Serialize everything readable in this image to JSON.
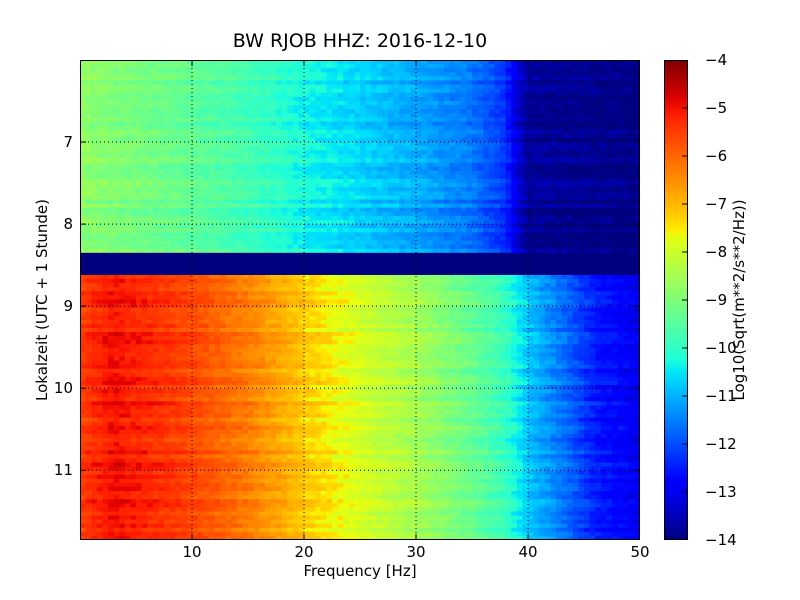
{
  "chart_data": {
    "type": "heatmap",
    "title": "BW RJOB HHZ: 2016-12-10",
    "xlabel": "Frequency [Hz]",
    "ylabel": "Lokalzeit (UTC + 1 Stunde)",
    "xlim": [
      0,
      50
    ],
    "ylim": [
      11.85,
      6.0
    ],
    "y_inverted": true,
    "x_ticks": [
      10,
      20,
      30,
      40,
      50
    ],
    "y_ticks": [
      7,
      8,
      9,
      10,
      11
    ],
    "grid": true,
    "colormap": "jet",
    "colorbar": {
      "label": "Log10(Sqrt(m**2/s**2/Hz))",
      "range": [
        -14,
        -4
      ],
      "ticks": [
        -4,
        -5,
        -6,
        -7,
        -8,
        -9,
        -10,
        -11,
        -12,
        -13,
        -14
      ]
    },
    "segments": [
      {
        "time_range": [
          6.0,
          8.35
        ],
        "frequency_hz": [
          0,
          5,
          10,
          15,
          20,
          25,
          30,
          35,
          38,
          39,
          40,
          50
        ],
        "log10_amplitude": [
          -8.8,
          -9.1,
          -9.4,
          -9.8,
          -10.3,
          -10.7,
          -11.1,
          -11.6,
          -12.3,
          -13.2,
          -13.8,
          -14.0
        ]
      },
      {
        "time_range": [
          8.35,
          8.62
        ],
        "frequency_hz": [
          0,
          50
        ],
        "log10_amplitude": [
          -14.0,
          -14.0
        ]
      },
      {
        "time_range": [
          8.62,
          11.85
        ],
        "frequency_hz": [
          0,
          3,
          10,
          15,
          20,
          25,
          30,
          35,
          38,
          40,
          43,
          46,
          50
        ],
        "log10_amplitude": [
          -5.5,
          -5.0,
          -5.6,
          -6.3,
          -7.2,
          -7.9,
          -8.5,
          -9.3,
          -9.9,
          -10.8,
          -11.6,
          -12.5,
          -13.0
        ]
      }
    ],
    "color_stops": {
      "positions": [
        0,
        0.11,
        0.125,
        0.34,
        0.35,
        0.375,
        0.64,
        0.65,
        0.66,
        0.89,
        0.91,
        1
      ],
      "colors": [
        "#00007f",
        "#0000ff",
        "#0000ff",
        "#00dcff",
        "#00e5f7",
        "#1cffda",
        "#ebff0a",
        "#ffea00",
        "#ffd800",
        "#ff1c00",
        "#e80000",
        "#7f0000"
      ]
    },
    "gridline_color": "#000000",
    "frame_color": "#000000"
  }
}
